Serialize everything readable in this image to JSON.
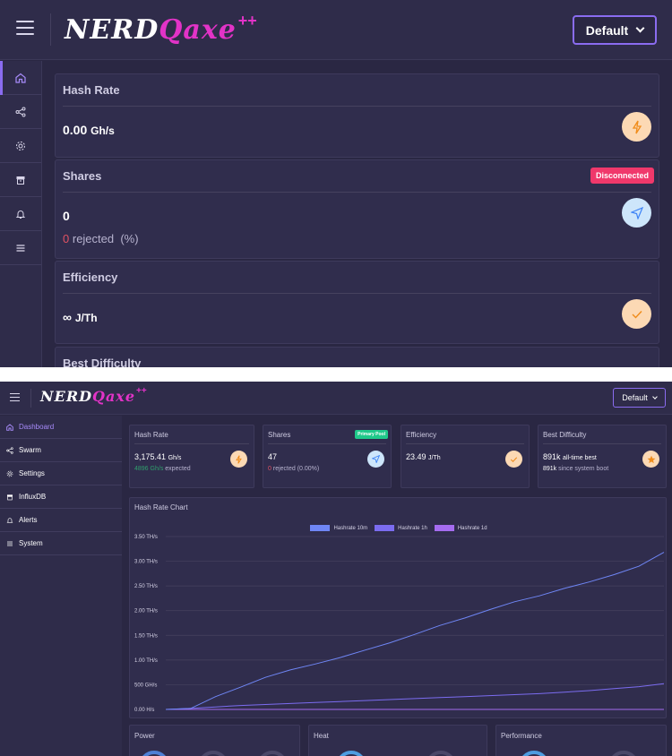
{
  "brand": {
    "logo_part1": "NERD",
    "logo_part2": "Qaxe",
    "logo_plus": "++"
  },
  "pool_selector": {
    "value": "Default"
  },
  "mobile": {
    "hash_rate": {
      "title": "Hash Rate",
      "value": "0.00",
      "unit": "Gh/s"
    },
    "shares": {
      "title": "Shares",
      "badge": "Disconnected",
      "value": "0",
      "rejected_count": "0",
      "rejected_label": "rejected",
      "rejected_pct": "(%)"
    },
    "efficiency": {
      "title": "Efficiency",
      "value": "∞",
      "unit": "J/Th"
    },
    "best_difficulty": {
      "title": "Best Difficulty"
    }
  },
  "sidebar": {
    "items": [
      {
        "label": "Dashboard",
        "icon": "home-icon"
      },
      {
        "label": "Swarm",
        "icon": "share-icon"
      },
      {
        "label": "Settings",
        "icon": "gear-icon"
      },
      {
        "label": "InfluxDB",
        "icon": "archive-icon"
      },
      {
        "label": "Alerts",
        "icon": "bell-icon"
      },
      {
        "label": "System",
        "icon": "menu-icon"
      }
    ]
  },
  "desktop": {
    "hash_rate": {
      "title": "Hash Rate",
      "value": "3,175.41",
      "unit": "Gh/s",
      "expected_value": "4896",
      "expected_unit": "Gh/s",
      "expected_label": "expected"
    },
    "shares": {
      "title": "Shares",
      "badge": "Primary Pool",
      "value": "47",
      "rejected_count": "0",
      "rejected_label": "rejected",
      "rejected_pct": "(0.00%)"
    },
    "efficiency": {
      "title": "Efficiency",
      "value": "23.49",
      "unit": "J/Th"
    },
    "best_difficulty": {
      "title": "Best Difficulty",
      "all_time_value": "891k",
      "all_time_label": "all-time best",
      "boot_value": "891k",
      "boot_label": "since system boot"
    },
    "bottom_cards": {
      "power": "Power",
      "heat": "Heat",
      "performance": "Performance"
    }
  },
  "colors": {
    "accent": "#8a6cf0",
    "badge_disconnected": "#f0386b",
    "badge_primary": "#1fc98a",
    "series_10m": "#6f86f5",
    "series_1h": "#7b6cf0",
    "series_1d": "#a56cf0"
  },
  "chart_data": {
    "type": "line",
    "title": "Hash Rate Chart",
    "ylim": [
      0,
      3.5
    ],
    "y_ticks": [
      "0.00 H/s",
      "500 GH/s",
      "1.00 TH/s",
      "1.50 TH/s",
      "2.00 TH/s",
      "2.50 TH/s",
      "3.00 TH/s",
      "3.50 TH/s"
    ],
    "x": [
      0,
      1,
      2,
      3,
      4,
      5,
      6,
      7,
      8,
      9,
      10,
      11,
      12,
      13,
      14,
      15,
      16,
      17,
      18,
      19,
      20
    ],
    "series": [
      {
        "name": "Hashrate 10m",
        "values": [
          0.0,
          0.02,
          0.26,
          0.45,
          0.65,
          0.8,
          0.92,
          1.05,
          1.2,
          1.35,
          1.52,
          1.7,
          1.85,
          2.02,
          2.18,
          2.3,
          2.45,
          2.58,
          2.73,
          2.9,
          3.18
        ]
      },
      {
        "name": "Hashrate 1h",
        "values": [
          0.0,
          0.02,
          0.05,
          0.08,
          0.1,
          0.12,
          0.14,
          0.16,
          0.18,
          0.2,
          0.22,
          0.24,
          0.26,
          0.28,
          0.3,
          0.32,
          0.35,
          0.38,
          0.42,
          0.46,
          0.52
        ]
      },
      {
        "name": "Hashrate 1d",
        "values": [
          0.0,
          0.0,
          0.0,
          0.0,
          0.0,
          0.0,
          0.0,
          0.0,
          0.0,
          0.0,
          0.0,
          0.0,
          0.0,
          0.0,
          0.0,
          0.0,
          0.0,
          0.0,
          0.0,
          0.0,
          0.0
        ]
      }
    ]
  }
}
